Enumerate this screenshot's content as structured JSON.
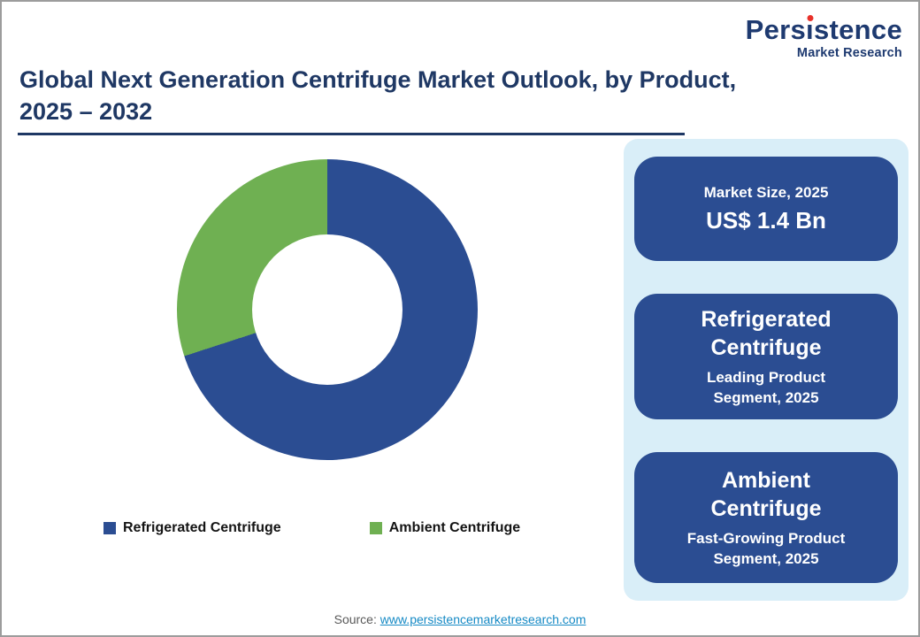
{
  "logo": {
    "name": "Persistence",
    "tagline": "Market Research"
  },
  "header": {
    "title_line1": "Global Next Generation Centrifuge Market Outlook, by Product,",
    "title_line2": "2025 – 2032"
  },
  "chart_data": {
    "type": "pie",
    "subtype": "donut",
    "title": "Global Next Generation Centrifuge Market Outlook, by Product, 2025 – 2032",
    "categories": [
      "Refrigerated Centrifuge",
      "Ambient Centrifuge"
    ],
    "values": [
      70,
      30
    ],
    "values_note": "share estimated from arc angles, percent",
    "colors": [
      "#2b4d92",
      "#6fb052"
    ],
    "start_angle": "top",
    "direction": "clockwise",
    "inner_radius_ratio": 0.5,
    "legend_position": "bottom"
  },
  "sidebar": {
    "cards": [
      {
        "heading": "Market Size, 2025",
        "value": "US$ 1.4 Bn"
      },
      {
        "heading": "Refrigerated Centrifuge",
        "subtext": "Leading Product Segment, 2025"
      },
      {
        "heading": "Ambient Centrifuge",
        "subtext": "Fast-Growing Product Segment, 2025"
      }
    ]
  },
  "footer": {
    "source_label": "Source:",
    "source_link_text": "www.persistencemarketresearch.com"
  },
  "colors": {
    "title_navy": "#1f3864",
    "card_blue": "#2b4d92",
    "chart_green": "#6fb052",
    "panel_light_blue": "#d9eef8",
    "logo_red": "#e8312a",
    "link_blue": "#168ac5",
    "source_grey": "#595959"
  }
}
